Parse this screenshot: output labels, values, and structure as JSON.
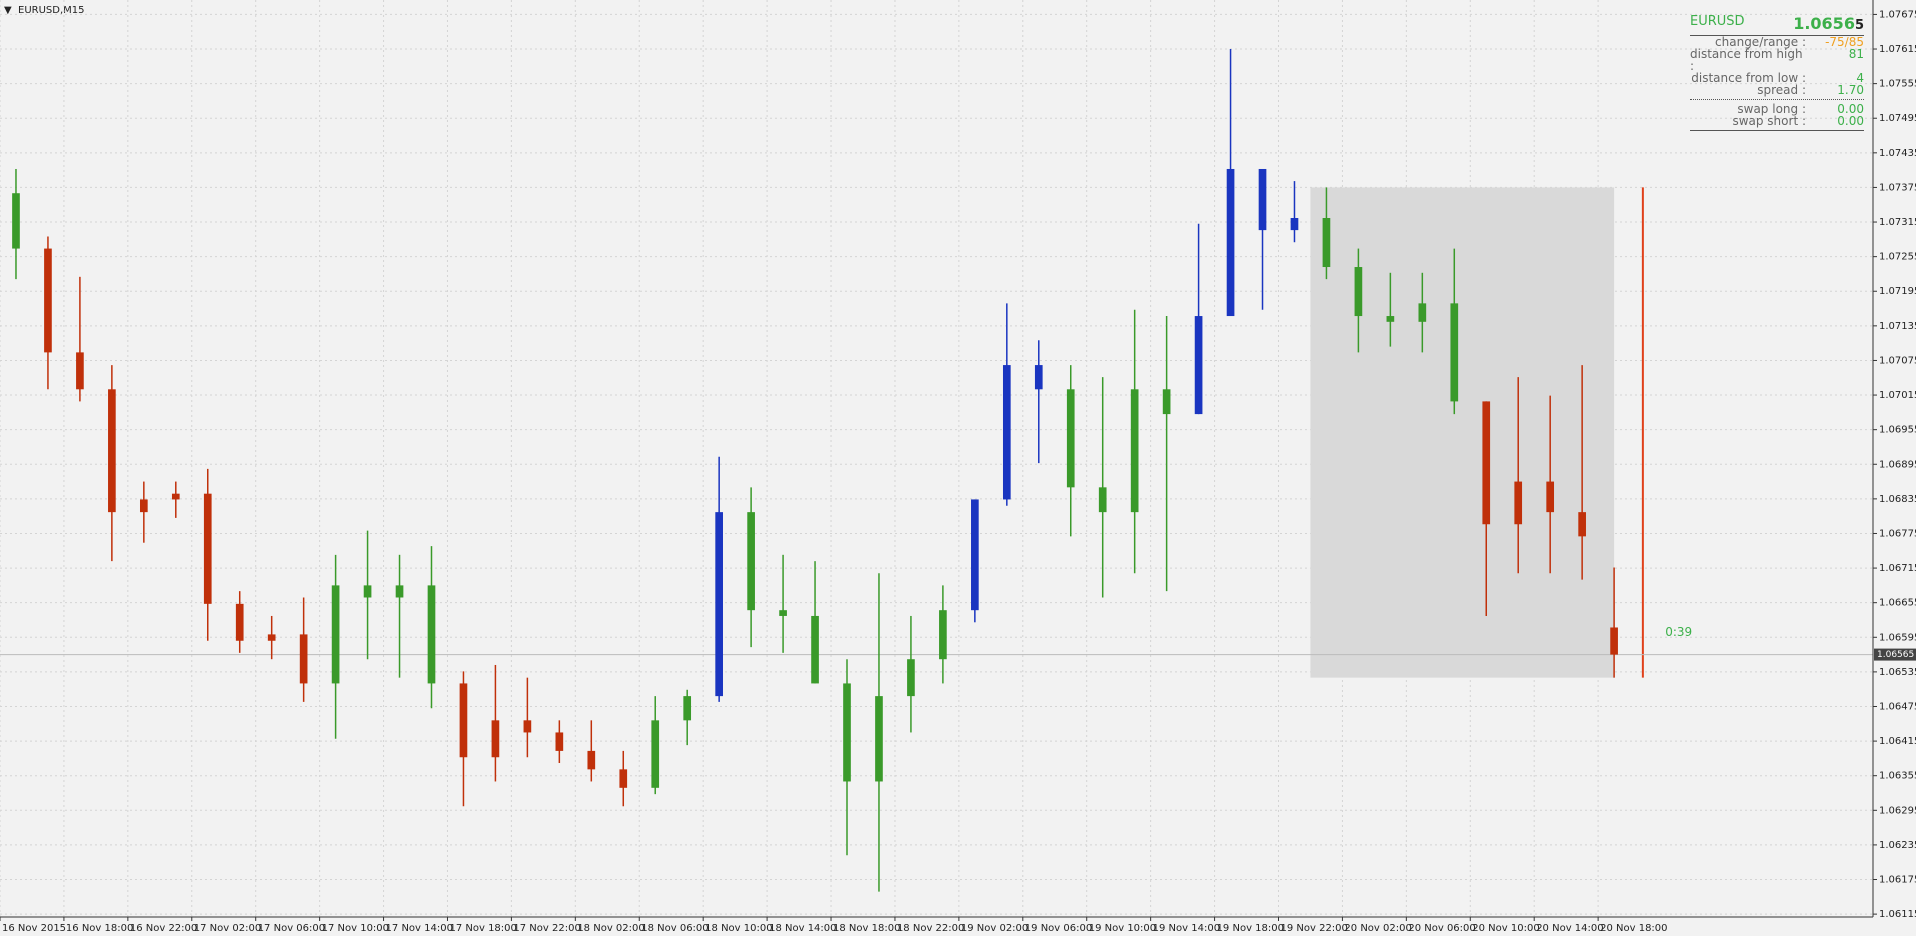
{
  "chart_data": {
    "type": "ohlc",
    "symbol_label": "EURUSD,M15",
    "xlim": [
      0,
      58.6
    ],
    "ylim": [
      1.0611,
      1.077
    ],
    "grid": true,
    "xticks": [
      {
        "value": 0,
        "label": "16 Nov 2015"
      },
      {
        "value": 2,
        "label": "16 Nov 18:00"
      },
      {
        "value": 4,
        "label": "16 Nov 22:00"
      },
      {
        "value": 6,
        "label": "17 Nov 02:00"
      },
      {
        "value": 8,
        "label": "17 Nov 06:00"
      },
      {
        "value": 10,
        "label": "17 Nov 10:00"
      },
      {
        "value": 12,
        "label": "17 Nov 14:00"
      },
      {
        "value": 14,
        "label": "17 Nov 18:00"
      },
      {
        "value": 16,
        "label": "17 Nov 22:00"
      },
      {
        "value": 18,
        "label": "18 Nov 02:00"
      },
      {
        "value": 20,
        "label": "18 Nov 06:00"
      },
      {
        "value": 22,
        "label": "18 Nov 10:00"
      },
      {
        "value": 24,
        "label": "18 Nov 14:00"
      },
      {
        "value": 26,
        "label": "18 Nov 18:00"
      },
      {
        "value": 28,
        "label": "18 Nov 22:00"
      },
      {
        "value": 30,
        "label": "19 Nov 02:00"
      },
      {
        "value": 32,
        "label": "19 Nov 06:00"
      },
      {
        "value": 34,
        "label": "19 Nov 10:00"
      },
      {
        "value": 36,
        "label": "19 Nov 14:00"
      },
      {
        "value": 38,
        "label": "19 Nov 18:00"
      },
      {
        "value": 40,
        "label": "19 Nov 22:00"
      },
      {
        "value": 42,
        "label": "20 Nov 02:00"
      },
      {
        "value": 44,
        "label": "20 Nov 06:00"
      },
      {
        "value": 46,
        "label": "20 Nov 10:00"
      },
      {
        "value": 48,
        "label": "20 Nov 14:00"
      },
      {
        "value": 50,
        "label": "20 Nov 18:00"
      }
    ],
    "yticks": [
      1.07675,
      1.07615,
      1.07555,
      1.07495,
      1.07435,
      1.07375,
      1.07315,
      1.07255,
      1.07195,
      1.07135,
      1.07075,
      1.07015,
      1.06955,
      1.06895,
      1.06835,
      1.06775,
      1.06715,
      1.06655,
      1.06595,
      1.06535,
      1.06475,
      1.06415,
      1.06355,
      1.06295,
      1.06235,
      1.06175,
      1.06115
    ],
    "series": [
      {
        "open": [
          1.07365,
          1.07269,
          1.07089,
          1.07025,
          1.06812,
          1.06834,
          1.06844,
          1.06653,
          1.06589,
          1.066,
          1.06515,
          1.06685,
          1.06664,
          1.06685,
          1.06515,
          1.06387,
          1.06451,
          1.0643,
          1.06398,
          1.06366,
          1.06334,
          1.06451,
          1.06493,
          1.06812,
          1.06642,
          1.06632,
          1.06515,
          1.06345,
          1.06493,
          1.06557,
          1.06642,
          1.06834,
          1.07067,
          1.07025,
          1.06855,
          1.06812,
          1.07025,
          1.06982,
          1.07152,
          1.07407,
          1.07301,
          1.07322,
          1.07237,
          1.07152,
          1.07142,
          1.07174,
          1.07004,
          1.06791,
          1.06865,
          1.06812,
          1.06612
        ],
        "high": [
          1.07407,
          1.0729,
          1.0722,
          1.07067,
          1.06865,
          1.06865,
          1.06887,
          1.06675,
          1.06632,
          1.06664,
          1.06738,
          1.0678,
          1.06738,
          1.06753,
          1.06536,
          1.06547,
          1.06525,
          1.06451,
          1.06451,
          1.06398,
          1.06493,
          1.06504,
          1.06908,
          1.06855,
          1.06738,
          1.06727,
          1.06557,
          1.06706,
          1.06632,
          1.06685,
          1.06834,
          1.07174,
          1.0711,
          1.07067,
          1.07046,
          1.07163,
          1.07152,
          1.07312,
          1.07615,
          1.07407,
          1.07386,
          1.07375,
          1.07269,
          1.07227,
          1.07227,
          1.07269,
          1.07004,
          1.07046,
          1.07014,
          1.07067,
          1.06716
        ],
        "low": [
          1.07216,
          1.07025,
          1.07004,
          1.06727,
          1.06759,
          1.06802,
          1.06589,
          1.06568,
          1.06557,
          1.06483,
          1.06419,
          1.06557,
          1.06525,
          1.06472,
          1.06302,
          1.06345,
          1.06387,
          1.06377,
          1.06345,
          1.06302,
          1.06323,
          1.06408,
          1.06483,
          1.06578,
          1.06568,
          1.06515,
          1.06217,
          1.06154,
          1.0643,
          1.06515,
          1.06621,
          1.06823,
          1.06897,
          1.0677,
          1.06664,
          1.06706,
          1.06675,
          1.06982,
          1.07152,
          1.07163,
          1.0728,
          1.07216,
          1.07089,
          1.07099,
          1.07089,
          1.06982,
          1.06632,
          1.06706,
          1.06706,
          1.06695,
          1.06525
        ],
        "close": [
          1.07269,
          1.07089,
          1.07025,
          1.06812,
          1.06834,
          1.06844,
          1.06653,
          1.06589,
          1.066,
          1.06515,
          1.06685,
          1.06664,
          1.06685,
          1.06515,
          1.06387,
          1.06451,
          1.0643,
          1.06398,
          1.06366,
          1.06334,
          1.06451,
          1.06493,
          1.06812,
          1.06642,
          1.06632,
          1.06515,
          1.06345,
          1.06493,
          1.06557,
          1.06642,
          1.06834,
          1.07067,
          1.07025,
          1.06855,
          1.06812,
          1.07025,
          1.06982,
          1.07152,
          1.07407,
          1.07301,
          1.07322,
          1.07237,
          1.07152,
          1.07142,
          1.07174,
          1.07004,
          1.06791,
          1.06865,
          1.06812,
          1.0677,
          1.06565
        ],
        "colors": [
          "#3a9a2a",
          "#c0300a",
          "#c0300a",
          "#c0300a",
          "#c0300a",
          "#c0300a",
          "#c0300a",
          "#c0300a",
          "#c0300a",
          "#c0300a",
          "#3a9a2a",
          "#3a9a2a",
          "#3a9a2a",
          "#3a9a2a",
          "#c0300a",
          "#c0300a",
          "#c0300a",
          "#c0300a",
          "#c0300a",
          "#c0300a",
          "#3a9a2a",
          "#3a9a2a",
          "#1a35c0",
          "#3a9a2a",
          "#3a9a2a",
          "#3a9a2a",
          "#3a9a2a",
          "#3a9a2a",
          "#3a9a2a",
          "#3a9a2a",
          "#1a35c0",
          "#1a35c0",
          "#1a35c0",
          "#3a9a2a",
          "#3a9a2a",
          "#3a9a2a",
          "#3a9a2a",
          "#1a35c0",
          "#1a35c0",
          "#1a35c0",
          "#1a35c0",
          "#3a9a2a",
          "#3a9a2a",
          "#3a9a2a",
          "#3a9a2a",
          "#3a9a2a",
          "#c0300a",
          "#c0300a",
          "#c0300a",
          "#c0300a",
          "#c0300a"
        ]
      }
    ],
    "range_box": {
      "high": 1.07375,
      "low": 1.06525,
      "color": "#d9d9d9",
      "line_color": "#e0401a"
    },
    "timer": "0:39"
  },
  "info_panel": {
    "symbol": "EURUSD",
    "bid_main": "1.0656",
    "bid_pip": "5",
    "rows": [
      {
        "label": "change/range :",
        "value": "-75/85",
        "color": "#f0a020"
      },
      {
        "label": "distance from high :",
        "value": "81",
        "color": "#3cb04a"
      },
      {
        "label": "distance from low :",
        "value": "4",
        "color": "#3cb04a"
      },
      {
        "label": "spread :",
        "value": "1.70",
        "color": "#3cb04a"
      },
      {
        "label": "swap long :",
        "value": "0.00",
        "color": "#3cb04a"
      },
      {
        "label": "swap short :",
        "value": "0.00",
        "color": "#3cb04a"
      }
    ]
  }
}
